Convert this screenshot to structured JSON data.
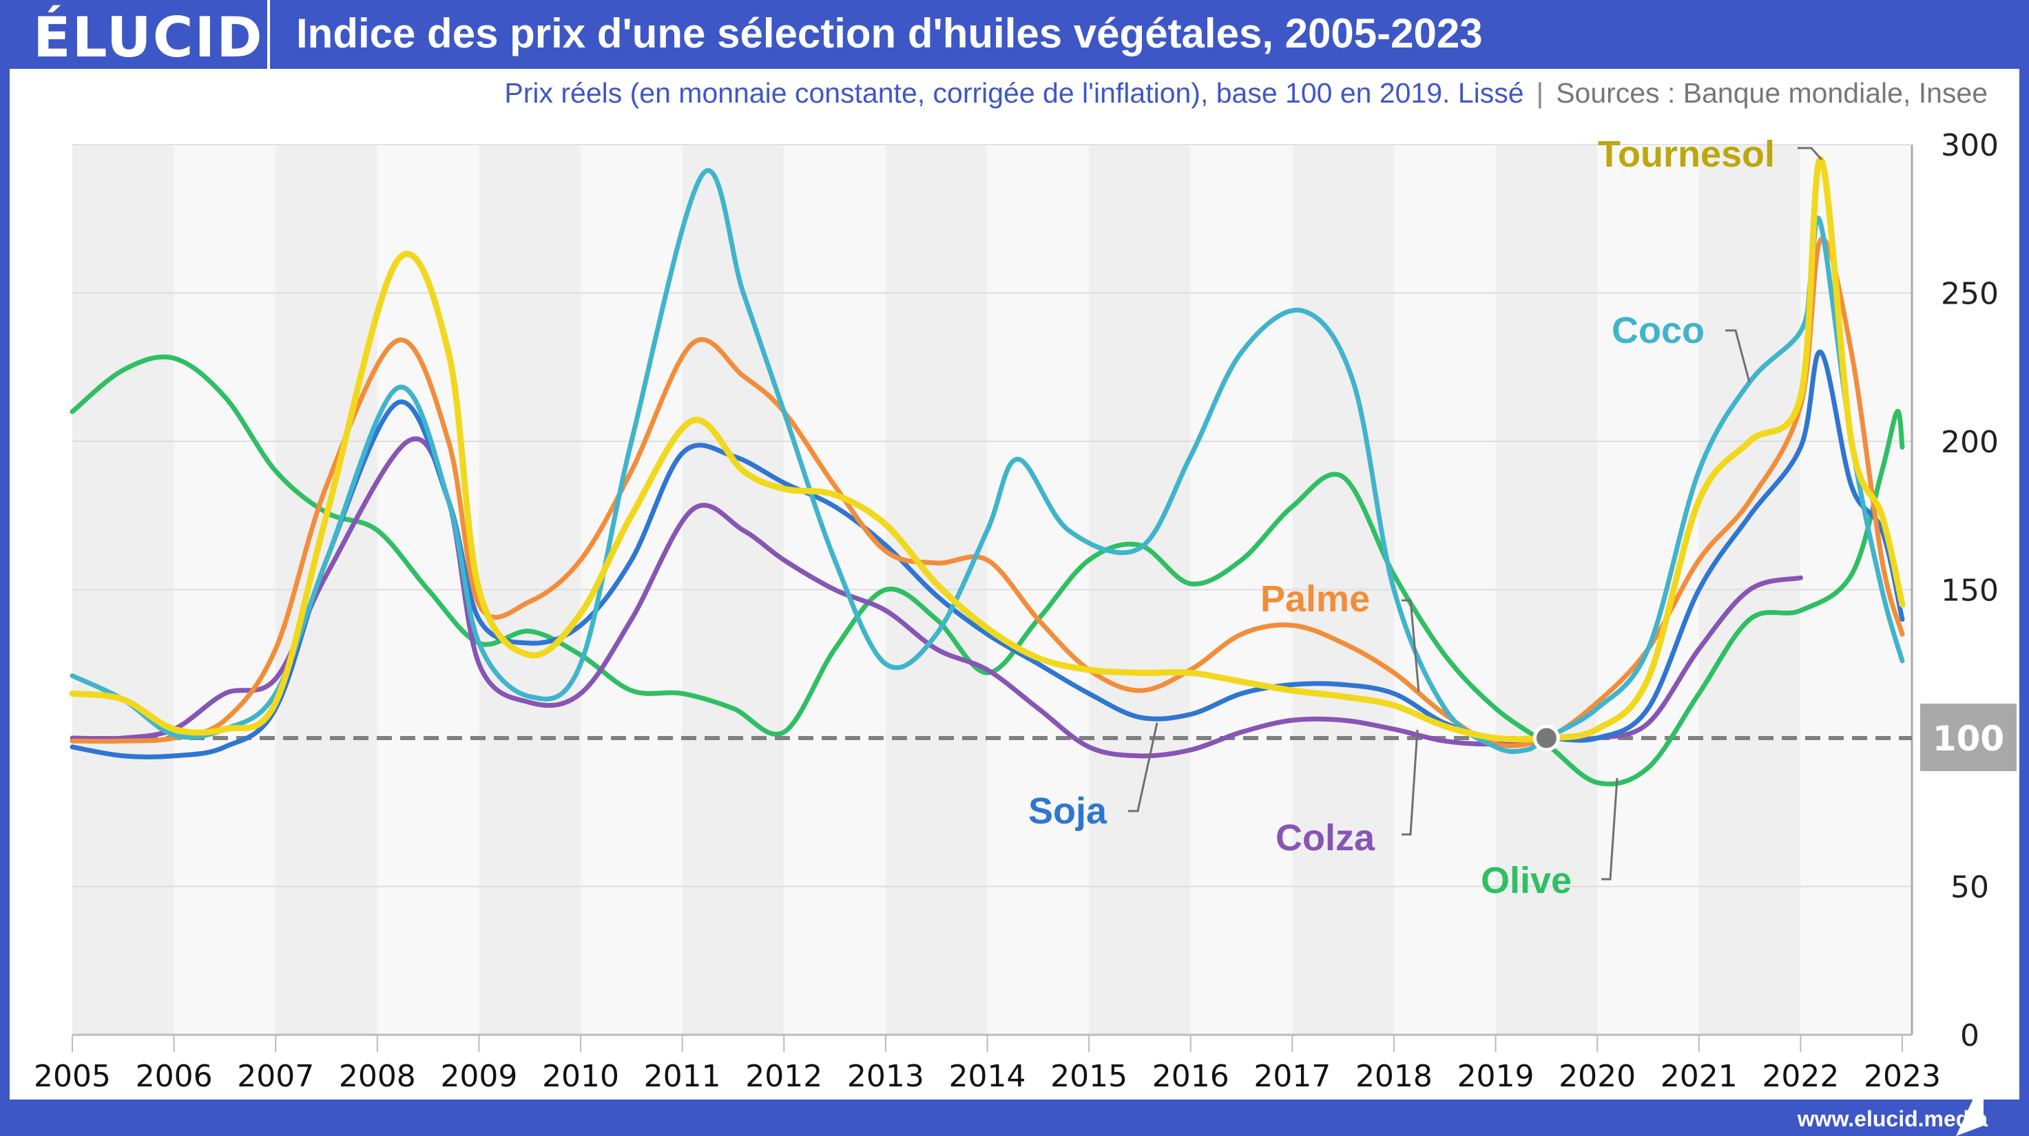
{
  "header": {
    "logo": "ÉLUCID",
    "title": "Indice des prix d'une sélection d'huiles végétales, 2005-2023"
  },
  "subtitle": {
    "main": "Prix réels (en monnaie constante, corrigée de l'inflation), base 100 en 2019. Lissé",
    "separator": "|",
    "sources": "Sources : Banque mondiale, Insee"
  },
  "footer": {
    "url": "www.elucid.media"
  },
  "colors": {
    "brand": "#3e57c6",
    "Tournesol": "#f2d81c",
    "Tournesol_label": "#bda70d",
    "Coco": "#3fb4cc",
    "Palme": "#f28d3a",
    "Soja": "#2f76d2",
    "Colza": "#8755b4",
    "Olive": "#2fbf63"
  },
  "chart_data": {
    "type": "line",
    "title": "Indice des prix d'une sélection d'huiles végétales, 2005-2023",
    "xlabel": "",
    "ylabel": "",
    "xlim": [
      2005,
      2023
    ],
    "ylim": [
      0,
      300
    ],
    "x_ticks": [
      "2005",
      "2006",
      "2007",
      "2008",
      "2009",
      "2010",
      "2011",
      "2012",
      "2013",
      "2014",
      "2015",
      "2016",
      "2017",
      "2018",
      "2019",
      "2020",
      "2021",
      "2022",
      "2023"
    ],
    "y_ticks": [
      "0",
      "50",
      "100",
      "150",
      "200",
      "250",
      "300"
    ],
    "baseline": {
      "value": 100,
      "label": "100",
      "style": "dashed"
    },
    "base_point": {
      "x": 2019.5,
      "y": 100
    },
    "grid": true,
    "series": [
      {
        "name": "Tournesol",
        "points": [
          [
            2005,
            115
          ],
          [
            2005.5,
            113
          ],
          [
            2006,
            103
          ],
          [
            2006.5,
            103
          ],
          [
            2007,
            112
          ],
          [
            2007.5,
            175
          ],
          [
            2008.2,
            261
          ],
          [
            2008.7,
            230
          ],
          [
            2009,
            150
          ],
          [
            2009.5,
            128
          ],
          [
            2010,
            142
          ],
          [
            2010.5,
            175
          ],
          [
            2011.1,
            207
          ],
          [
            2011.6,
            190
          ],
          [
            2012,
            184
          ],
          [
            2012.5,
            182
          ],
          [
            2013,
            172
          ],
          [
            2013.5,
            152
          ],
          [
            2014,
            137
          ],
          [
            2014.5,
            127
          ],
          [
            2015,
            123
          ],
          [
            2015.5,
            122
          ],
          [
            2016,
            122
          ],
          [
            2016.5,
            119
          ],
          [
            2017,
            116
          ],
          [
            2017.5,
            114
          ],
          [
            2018,
            111
          ],
          [
            2018.5,
            104
          ],
          [
            2019,
            100
          ],
          [
            2019.5,
            100
          ],
          [
            2020,
            103
          ],
          [
            2020.5,
            120
          ],
          [
            2021,
            180
          ],
          [
            2021.5,
            200
          ],
          [
            2022,
            215
          ],
          [
            2022.2,
            295
          ],
          [
            2022.5,
            200
          ],
          [
            2022.8,
            175
          ],
          [
            2023,
            145
          ]
        ]
      },
      {
        "name": "Coco",
        "points": [
          [
            2005,
            121
          ],
          [
            2005.5,
            113
          ],
          [
            2006,
            101
          ],
          [
            2006.5,
            103
          ],
          [
            2007,
            115
          ],
          [
            2007.5,
            160
          ],
          [
            2008.2,
            218
          ],
          [
            2008.7,
            180
          ],
          [
            2009,
            132
          ],
          [
            2009.5,
            114
          ],
          [
            2010,
            125
          ],
          [
            2010.5,
            200
          ],
          [
            2011.2,
            290
          ],
          [
            2011.6,
            250
          ],
          [
            2012,
            210
          ],
          [
            2012.5,
            160
          ],
          [
            2013,
            125
          ],
          [
            2013.5,
            135
          ],
          [
            2014,
            170
          ],
          [
            2014.3,
            194
          ],
          [
            2014.8,
            170
          ],
          [
            2015.5,
            164
          ],
          [
            2016,
            195
          ],
          [
            2016.5,
            230
          ],
          [
            2017.1,
            244
          ],
          [
            2017.6,
            220
          ],
          [
            2018,
            150
          ],
          [
            2018.5,
            110
          ],
          [
            2019,
            97
          ],
          [
            2019.3,
            96
          ],
          [
            2019.5,
            100
          ],
          [
            2020,
            110
          ],
          [
            2020.5,
            130
          ],
          [
            2021,
            190
          ],
          [
            2021.5,
            220
          ],
          [
            2022,
            237
          ],
          [
            2022.1,
            255
          ],
          [
            2022.2,
            273
          ],
          [
            2022.5,
            200
          ],
          [
            2022.8,
            150
          ],
          [
            2023,
            126
          ]
        ]
      },
      {
        "name": "Palme",
        "points": [
          [
            2005,
            99
          ],
          [
            2005.5,
            99
          ],
          [
            2006,
            100
          ],
          [
            2006.5,
            106
          ],
          [
            2007,
            130
          ],
          [
            2007.5,
            185
          ],
          [
            2008.2,
            234
          ],
          [
            2008.7,
            200
          ],
          [
            2009,
            145
          ],
          [
            2009.5,
            146
          ],
          [
            2010,
            160
          ],
          [
            2010.5,
            190
          ],
          [
            2011.1,
            233
          ],
          [
            2011.6,
            222
          ],
          [
            2012,
            210
          ],
          [
            2012.5,
            185
          ],
          [
            2013,
            163
          ],
          [
            2013.5,
            159
          ],
          [
            2014,
            160
          ],
          [
            2014.5,
            140
          ],
          [
            2015,
            123
          ],
          [
            2015.5,
            116
          ],
          [
            2016,
            123
          ],
          [
            2016.5,
            135
          ],
          [
            2017,
            138
          ],
          [
            2017.5,
            132
          ],
          [
            2018,
            122
          ],
          [
            2018.5,
            108
          ],
          [
            2019,
            98
          ],
          [
            2019.5,
            100
          ],
          [
            2020,
            112
          ],
          [
            2020.5,
            130
          ],
          [
            2021,
            160
          ],
          [
            2021.5,
            180
          ],
          [
            2022,
            212
          ],
          [
            2022.2,
            268
          ],
          [
            2022.5,
            230
          ],
          [
            2022.8,
            160
          ],
          [
            2023,
            135
          ]
        ]
      },
      {
        "name": "Soja",
        "points": [
          [
            2005,
            97
          ],
          [
            2005.5,
            94
          ],
          [
            2006,
            94
          ],
          [
            2006.5,
            97
          ],
          [
            2007,
            110
          ],
          [
            2007.5,
            160
          ],
          [
            2008.2,
            213
          ],
          [
            2008.7,
            180
          ],
          [
            2009,
            140
          ],
          [
            2009.5,
            132
          ],
          [
            2010,
            138
          ],
          [
            2010.5,
            160
          ],
          [
            2011.0,
            196
          ],
          [
            2011.5,
            195
          ],
          [
            2012,
            186
          ],
          [
            2012.5,
            178
          ],
          [
            2013,
            165
          ],
          [
            2013.5,
            148
          ],
          [
            2014,
            135
          ],
          [
            2014.5,
            125
          ],
          [
            2015,
            115
          ],
          [
            2015.5,
            107
          ],
          [
            2016,
            108
          ],
          [
            2016.5,
            115
          ],
          [
            2017,
            118
          ],
          [
            2017.5,
            118
          ],
          [
            2018,
            115
          ],
          [
            2018.5,
            105
          ],
          [
            2019,
            100
          ],
          [
            2019.5,
            100
          ],
          [
            2020,
            100
          ],
          [
            2020.5,
            110
          ],
          [
            2021,
            150
          ],
          [
            2021.5,
            175
          ],
          [
            2022,
            198
          ],
          [
            2022.2,
            230
          ],
          [
            2022.5,
            185
          ],
          [
            2022.8,
            170
          ],
          [
            2023,
            140
          ]
        ]
      },
      {
        "name": "Colza",
        "points": [
          [
            2005,
            100
          ],
          [
            2005.5,
            100
          ],
          [
            2006,
            103
          ],
          [
            2006.5,
            115
          ],
          [
            2007,
            120
          ],
          [
            2007.5,
            155
          ],
          [
            2008.3,
            200
          ],
          [
            2008.7,
            180
          ],
          [
            2009,
            125
          ],
          [
            2009.5,
            112
          ],
          [
            2010,
            115
          ],
          [
            2010.5,
            140
          ],
          [
            2011.1,
            177
          ],
          [
            2011.6,
            170
          ],
          [
            2012,
            160
          ],
          [
            2012.5,
            150
          ],
          [
            2013,
            143
          ],
          [
            2013.5,
            130
          ],
          [
            2014,
            123
          ],
          [
            2014.5,
            110
          ],
          [
            2015,
            97
          ],
          [
            2015.5,
            94
          ],
          [
            2016,
            96
          ],
          [
            2016.5,
            102
          ],
          [
            2017,
            106
          ],
          [
            2017.5,
            106
          ],
          [
            2018,
            103
          ],
          [
            2018.5,
            99
          ],
          [
            2019,
            98
          ],
          [
            2019.5,
            100
          ],
          [
            2020,
            100
          ],
          [
            2020.5,
            105
          ],
          [
            2021,
            130
          ],
          [
            2021.5,
            150
          ],
          [
            2022,
            154
          ]
        ]
      },
      {
        "name": "Olive",
        "points": [
          [
            2005,
            210
          ],
          [
            2005.5,
            224
          ],
          [
            2006,
            228
          ],
          [
            2006.5,
            215
          ],
          [
            2007,
            190
          ],
          [
            2007.5,
            176
          ],
          [
            2008,
            170
          ],
          [
            2008.5,
            150
          ],
          [
            2009,
            132
          ],
          [
            2009.5,
            136
          ],
          [
            2010,
            128
          ],
          [
            2010.5,
            116
          ],
          [
            2011,
            115
          ],
          [
            2011.5,
            110
          ],
          [
            2012,
            102
          ],
          [
            2012.5,
            130
          ],
          [
            2013,
            150
          ],
          [
            2013.5,
            140
          ],
          [
            2014,
            122
          ],
          [
            2014.5,
            140
          ],
          [
            2015,
            160
          ],
          [
            2015.5,
            165
          ],
          [
            2016,
            152
          ],
          [
            2016.5,
            160
          ],
          [
            2017,
            178
          ],
          [
            2017.5,
            188
          ],
          [
            2018,
            155
          ],
          [
            2018.5,
            128
          ],
          [
            2019,
            110
          ],
          [
            2019.5,
            98
          ],
          [
            2020,
            85
          ],
          [
            2020.5,
            90
          ],
          [
            2021,
            115
          ],
          [
            2021.5,
            140
          ],
          [
            2022,
            143
          ],
          [
            2022.5,
            155
          ],
          [
            2022.8,
            190
          ],
          [
            2022.95,
            210
          ],
          [
            2023,
            198
          ]
        ]
      }
    ],
    "annotations": [
      {
        "text": "Tournesol",
        "series": "Tournesol"
      },
      {
        "text": "Coco",
        "series": "Coco"
      },
      {
        "text": "Palme",
        "series": "Palme"
      },
      {
        "text": "Soja",
        "series": "Soja"
      },
      {
        "text": "Colza",
        "series": "Colza"
      },
      {
        "text": "Olive",
        "series": "Olive"
      }
    ]
  }
}
